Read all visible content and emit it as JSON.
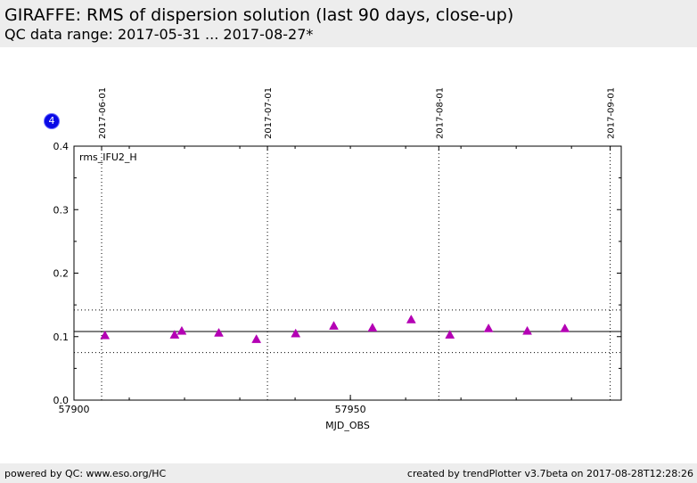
{
  "header": {
    "title": "GIRAFFE: RMS of dispersion solution (last 90 days, close-up)",
    "subtitle": "QC data range: 2017-05-31 ... 2017-08-27*"
  },
  "badge": "4",
  "footer": {
    "left": "powered by QC: www.eso.org/HC",
    "right": "created by trendPlotter v3.7beta on 2017-08-28T12:28:26"
  },
  "chart_data": {
    "type": "scatter",
    "series_label": "rms_IFU2_H",
    "xlabel": "MJD_OBS",
    "ylabel": "",
    "xlim": [
      57900,
      57999
    ],
    "ylim": [
      0.0,
      0.4
    ],
    "x_ticks": [
      57900,
      57950
    ],
    "y_ticks": [
      0.0,
      0.1,
      0.2,
      0.3,
      0.4
    ],
    "y_tick_labels": [
      "0.0",
      "0.1",
      "0.2",
      "0.3",
      "0.4"
    ],
    "date_markers": [
      {
        "mjd": 57905,
        "label": "2017-06-01"
      },
      {
        "mjd": 57935,
        "label": "2017-07-01"
      },
      {
        "mjd": 57966,
        "label": "2017-08-01"
      },
      {
        "mjd": 57997,
        "label": "2017-09-01"
      }
    ],
    "reference_line": 0.108,
    "limits": [
      0.075,
      0.142
    ],
    "marker_color": "#b400b4",
    "points": [
      {
        "x": 57905.6,
        "y": 0.102
      },
      {
        "x": 57918.2,
        "y": 0.103
      },
      {
        "x": 57919.5,
        "y": 0.109
      },
      {
        "x": 57926.2,
        "y": 0.106
      },
      {
        "x": 57933.0,
        "y": 0.096
      },
      {
        "x": 57940.1,
        "y": 0.105
      },
      {
        "x": 57947.0,
        "y": 0.117
      },
      {
        "x": 57954.0,
        "y": 0.114
      },
      {
        "x": 57961.0,
        "y": 0.127
      },
      {
        "x": 57968.0,
        "y": 0.103
      },
      {
        "x": 57975.0,
        "y": 0.113
      },
      {
        "x": 57982.0,
        "y": 0.109
      },
      {
        "x": 57988.8,
        "y": 0.113
      }
    ]
  }
}
